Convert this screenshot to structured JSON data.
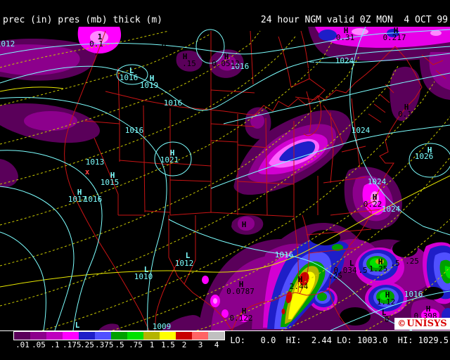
{
  "header": {
    "left": "prec (in) pres (mb) thick (m)",
    "right": "24 hour NGM valid 0Z MON  4 OCT 99"
  },
  "legend": {
    "values": [
      ".01",
      ".05",
      ".1",
      ".175",
      ".25",
      ".375",
      ".5",
      ".75",
      "1",
      "1.5",
      "2",
      "3",
      "4"
    ],
    "colors": [
      "#5A005A",
      "#8C008C",
      "#BE00BE",
      "#FF00FF",
      "#1E1EC8",
      "#5050FF",
      "#00A000",
      "#00E100",
      "#B4B400",
      "#FFFF00",
      "#C80000",
      "#FF6464",
      "#C0C0C0"
    ]
  },
  "stats": {
    "line": "LO:   0.0  HI:  2.44 LO: 1003.0  HI: 1029.5",
    "precip_lo": "0.0",
    "precip_hi": "2.44",
    "pressure_lo": "1003.0",
    "pressure_hi": "1029.5"
  },
  "logo": {
    "copyright": "©",
    "name": "UNİSYS"
  },
  "map": {
    "palette": {
      "cyan": "#7DFFFF",
      "black": "#000000",
      "red": "#FF4040"
    },
    "labels": [
      [
        "L",
        187,
        104,
        "cyan",
        1
      ],
      [
        "1016",
        183,
        114,
        "cyan",
        0
      ],
      [
        "H",
        216,
        115,
        "cyan",
        1
      ],
      [
        "1019",
        212,
        125,
        "cyan",
        0
      ],
      [
        "1016",
        246,
        150,
        "cyan",
        0
      ],
      [
        "1016",
        191,
        189,
        "cyan",
        0
      ],
      [
        "1016",
        341,
        98,
        "cyan",
        0
      ],
      [
        "H",
        245,
        221,
        "cyan",
        1
      ],
      [
        "1021",
        241,
        231,
        "cyan",
        0
      ],
      [
        "1013",
        135,
        234,
        "cyan",
        0
      ],
      [
        "H",
        160,
        253,
        "cyan",
        1
      ],
      [
        "1015",
        156,
        263,
        "cyan",
        0
      ],
      [
        "H",
        113,
        277,
        "cyan",
        1
      ],
      [
        "1017",
        110,
        287,
        "cyan",
        0
      ],
      [
        "1016",
        132,
        287,
        "cyan",
        0
      ],
      [
        "L",
        208,
        387,
        "cyan",
        1
      ],
      [
        "1010",
        204,
        397,
        "cyan",
        0
      ],
      [
        "L",
        267,
        367,
        "cyan",
        1
      ],
      [
        "1012",
        262,
        378,
        "cyan",
        0
      ],
      [
        "1009",
        230,
        468,
        "cyan",
        0
      ],
      [
        "L",
        110,
        466,
        "cyan",
        1
      ],
      [
        "1016",
        404,
        366,
        "cyan",
        0
      ],
      [
        "1024",
        490,
        90,
        "cyan",
        0
      ],
      [
        "1024",
        513,
        189,
        "cyan",
        0
      ],
      [
        "1024",
        536,
        262,
        "cyan",
        0
      ],
      [
        "1024",
        556,
        301,
        "cyan",
        0
      ],
      [
        "H",
        611,
        217,
        "cyan",
        1
      ],
      [
        "1026",
        603,
        226,
        "cyan",
        0
      ],
      [
        "1016",
        588,
        422,
        "cyan",
        0
      ],
      [
        "1012",
        8,
        66,
        "cyan",
        0
      ],
      [
        "1",
        142,
        56,
        "black",
        1
      ],
      [
        "0.1",
        137,
        66,
        "black",
        0
      ],
      [
        "H",
        233,
        67,
        "black",
        1
      ],
      [
        "H",
        263,
        84,
        "black",
        1
      ],
      [
        ".15",
        269,
        94,
        "black",
        0
      ],
      [
        "H",
        322,
        84,
        "black",
        1
      ],
      [
        "0.0512",
        321,
        94,
        "black",
        0
      ],
      [
        "H",
        492,
        47,
        "black",
        1
      ],
      [
        "0.31",
        491,
        57,
        "black",
        0
      ],
      [
        "H",
        563,
        47,
        "black",
        1
      ],
      [
        "0.217",
        561,
        57,
        "black",
        0
      ],
      [
        "L",
        449,
        95,
        "black",
        1
      ],
      [
        "0.03",
        448,
        105,
        "black",
        0
      ],
      [
        "H",
        578,
        156,
        "black",
        1
      ],
      [
        "0.1",
        576,
        166,
        "black",
        0
      ],
      [
        "H",
        533,
        284,
        "black",
        1
      ],
      [
        "0.22",
        530,
        294,
        "black",
        0
      ],
      [
        "H",
        347,
        323,
        "black",
        1
      ],
      [
        "H",
        343,
        408,
        "black",
        1
      ],
      [
        "0.0787",
        342,
        418,
        "black",
        0
      ],
      [
        "H",
        347,
        446,
        "black",
        1
      ],
      [
        "0.122",
        343,
        456,
        "black",
        0
      ],
      [
        "H",
        427,
        401,
        "black",
        1
      ],
      [
        "2.44",
        425,
        411,
        "black",
        0
      ],
      [
        "L",
        500,
        378,
        "black",
        1
      ],
      [
        "0.034",
        491,
        388,
        "black",
        0
      ],
      [
        ".5",
        516,
        388,
        "black",
        0
      ],
      [
        "H",
        541,
        376,
        "black",
        1
      ],
      [
        "1.25",
        538,
        386,
        "black",
        0
      ],
      [
        ".25",
        477,
        396,
        "black",
        0
      ],
      [
        ".5",
        562,
        378,
        "black",
        0
      ],
      [
        ".25",
        586,
        375,
        "black",
        0
      ],
      [
        "H",
        551,
        423,
        "black",
        1
      ],
      [
        "1.12",
        549,
        433,
        "black",
        0
      ],
      [
        "L",
        546,
        448,
        "black",
        1
      ],
      [
        "0",
        550,
        458,
        "black",
        0
      ],
      [
        "H",
        609,
        443,
        "black",
        1
      ],
      [
        "0.398",
        605,
        453,
        "black",
        0
      ],
      [
        "x",
        124,
        248,
        "red",
        1
      ]
    ]
  },
  "chart_data": {
    "type": "weather_map",
    "title": "24 hour NGM valid 0Z MON 4 OCT 99",
    "fields": [
      "precipitation (in)",
      "pressure (mb)",
      "thickness (m)"
    ],
    "precip_scale_in": [
      0.01,
      0.05,
      0.1,
      0.175,
      0.25,
      0.375,
      0.5,
      0.75,
      1,
      1.5,
      2,
      3,
      4
    ],
    "pressure_centers": [
      {
        "type": "L",
        "value": 1016
      },
      {
        "type": "H",
        "value": 1019
      },
      {
        "type": "H",
        "value": 1021
      },
      {
        "type": "H",
        "value": 1015
      },
      {
        "type": "H",
        "value": 1017
      },
      {
        "type": "L",
        "value": 1010
      },
      {
        "type": "L",
        "value": 1012
      },
      {
        "type": "H",
        "value": 1026
      }
    ],
    "isobar_labels": [
      1016,
      1013,
      1009,
      1012,
      1015,
      1024,
      1026
    ],
    "precip_maxima": [
      0.1,
      0.15,
      0.0512,
      0.31,
      0.217,
      0.1,
      0.22,
      0.0787,
      0.122,
      2.44,
      1.25,
      1.12,
      0.398
    ],
    "precip_minima": [
      0.03,
      0.034,
      0
    ],
    "extrema": {
      "precip_lo": 0.0,
      "precip_hi": 2.44,
      "pressure_lo": 1003.0,
      "pressure_hi": 1029.5
    },
    "legend_position": "bottom-left",
    "line_legend": {
      "cyan": "pressure (mb)",
      "yellow-dashed": "thickness (m)",
      "red": "state borders"
    }
  }
}
